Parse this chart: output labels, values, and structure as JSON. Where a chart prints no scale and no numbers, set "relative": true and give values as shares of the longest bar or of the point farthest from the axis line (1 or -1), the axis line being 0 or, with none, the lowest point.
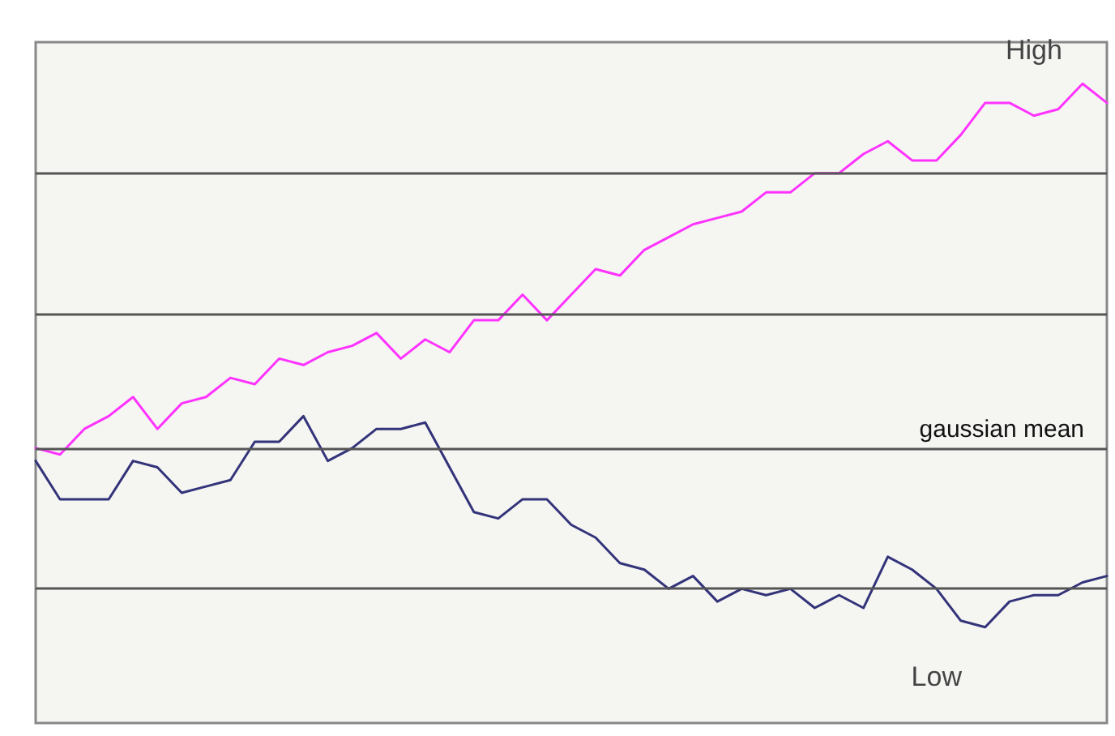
{
  "chart_data": {
    "type": "line",
    "relative": true,
    "legend": false,
    "marker": "none",
    "line_style": "solid",
    "categories": [
      null,
      null,
      null,
      null,
      null,
      null,
      null,
      null,
      null,
      null,
      null,
      null,
      null,
      null,
      null,
      null,
      null,
      null,
      null,
      null,
      null,
      null,
      null,
      null,
      null,
      null,
      null,
      null,
      null,
      null,
      null,
      null,
      null,
      null,
      null,
      null,
      null,
      null,
      null,
      null,
      null,
      null,
      null,
      null,
      null
    ],
    "series": [
      {
        "name": "High",
        "color": "#ff33ff",
        "values": [
          0.43,
          0.42,
          0.46,
          0.48,
          0.51,
          0.46,
          0.5,
          0.51,
          0.54,
          0.53,
          0.57,
          0.56,
          0.58,
          0.59,
          0.61,
          0.57,
          0.6,
          0.58,
          0.63,
          0.63,
          0.67,
          0.63,
          0.67,
          0.71,
          0.7,
          0.74,
          0.76,
          0.78,
          0.79,
          0.8,
          0.83,
          0.83,
          0.86,
          0.86,
          0.89,
          0.91,
          0.88,
          0.88,
          0.92,
          0.97,
          0.97,
          0.95,
          0.96,
          1.0,
          0.97
        ]
      },
      {
        "name": "Low",
        "color": "#33337a",
        "values": [
          0.41,
          0.35,
          0.35,
          0.35,
          0.41,
          0.4,
          0.36,
          0.37,
          0.38,
          0.44,
          0.44,
          0.48,
          0.41,
          0.43,
          0.46,
          0.46,
          0.47,
          0.4,
          0.33,
          0.32,
          0.35,
          0.35,
          0.31,
          0.29,
          0.25,
          0.24,
          0.21,
          0.23,
          0.19,
          0.21,
          0.2,
          0.21,
          0.18,
          0.2,
          0.18,
          0.26,
          0.24,
          0.21,
          0.16,
          0.15,
          0.19,
          0.2,
          0.2,
          0.22,
          0.23
        ]
      }
    ],
    "ref_lines": [
      {
        "axis": "y",
        "value": 0.86,
        "color": "#555555"
      },
      {
        "axis": "y",
        "value": 0.64,
        "color": "#555555"
      },
      {
        "axis": "y",
        "value": 0.43,
        "label": "gaussian mean",
        "color": "#555555"
      },
      {
        "axis": "y",
        "value": 0.21,
        "color": "#555555"
      }
    ]
  }
}
